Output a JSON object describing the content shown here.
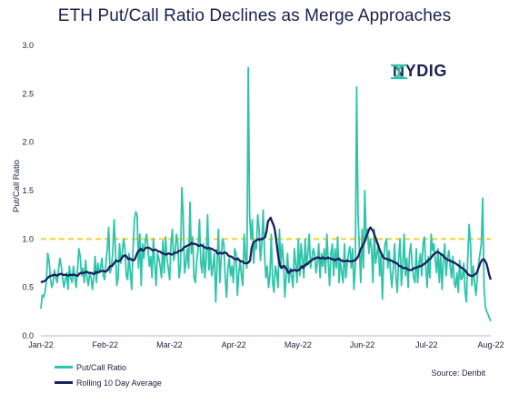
{
  "title": "ETH Put/Call Ratio Declines as Merge Approaches",
  "logo_text": "NYDIG",
  "source": "Source: Deribit",
  "colors": {
    "ratio": "#2ec4aa",
    "average": "#1b1f5c",
    "reference": "#f5d33a",
    "text": "#1a1f3a"
  },
  "chart_data": {
    "type": "line",
    "title": "ETH Put/Call Ratio Declines as Merge Approaches",
    "xlabel": "",
    "ylabel": "Put/Call Ratio",
    "ylim": [
      0,
      3.0
    ],
    "yticks": [
      "0.0",
      "0.5",
      "1.0",
      "1.5",
      "2.0",
      "2.5",
      "3.0"
    ],
    "xticks": [
      "Jan-22",
      "Feb-22",
      "Mar-22",
      "Apr-22",
      "May-22",
      "Jun-22",
      "Jul-22",
      "Aug-22"
    ],
    "x_range": [
      "2022-01-01",
      "2022-08-01"
    ],
    "reference_line": {
      "y": 1.0,
      "style": "dashed"
    },
    "grid": false,
    "legend": "bottom-left",
    "series": [
      {
        "name": "Put/Call Ratio",
        "values": [
          0.28,
          0.42,
          0.4,
          0.45,
          0.55,
          0.85,
          0.78,
          0.6,
          0.5,
          0.55,
          0.68,
          0.6,
          0.55,
          0.68,
          0.8,
          0.72,
          0.6,
          0.5,
          0.58,
          0.65,
          0.48,
          0.72,
          0.6,
          0.55,
          0.72,
          0.6,
          0.5,
          0.68,
          0.9,
          0.82,
          0.62,
          0.7,
          0.55,
          0.78,
          0.6,
          0.52,
          0.65,
          0.6,
          0.48,
          0.6,
          0.82,
          0.55,
          0.75,
          0.65,
          0.7,
          0.8,
          0.62,
          0.58,
          0.75,
          0.9,
          1.12,
          0.65,
          0.7,
          0.85,
          1.2,
          0.9,
          0.52,
          0.6,
          0.95,
          0.75,
          0.85,
          1.0,
          0.9,
          0.62,
          0.58,
          0.85,
          0.65,
          0.48,
          0.9,
          1.2,
          1.28,
          1.25,
          0.7,
          1.05,
          0.52,
          0.95,
          0.8,
          0.98,
          1.05,
          0.9,
          0.72,
          0.82,
          0.6,
          1.0,
          0.75,
          0.52,
          0.85,
          0.8,
          0.72,
          0.6,
          0.98,
          0.65,
          1.02,
          0.8,
          0.7,
          0.58,
          0.95,
          1.1,
          0.78,
          0.85,
          1.05,
          0.95,
          0.6,
          0.72,
          1.53,
          1.25,
          0.65,
          0.75,
          0.9,
          0.7,
          1.38,
          0.85,
          1.02,
          0.6,
          0.55,
          0.78,
          0.9,
          1.2,
          0.75,
          0.65,
          0.95,
          0.6,
          0.8,
          1.25,
          0.68,
          0.9,
          0.62,
          0.72,
          0.85,
          0.35,
          0.75,
          1.1,
          0.55,
          0.8,
          1.0,
          0.95,
          0.6,
          0.4,
          0.7,
          0.8,
          0.62,
          0.72,
          0.55,
          0.9,
          0.85,
          0.42,
          0.65,
          0.78,
          0.62,
          0.52,
          1.05,
          0.8,
          0.7,
          2.77,
          1.25,
          1.0,
          1.2,
          0.75,
          0.95,
          0.9,
          1.25,
          1.1,
          0.78,
          0.95,
          1.3,
          0.85,
          0.6,
          0.72,
          0.5,
          0.62,
          1.05,
          0.55,
          0.45,
          0.72,
          0.65,
          0.5,
          1.1,
          0.7,
          0.95,
          0.78,
          0.4,
          0.62,
          0.85,
          0.55,
          0.7,
          0.62,
          0.5,
          0.9,
          0.75,
          0.55,
          1.0,
          0.62,
          0.95,
          0.8,
          0.6,
          1.0,
          0.72,
          0.85,
          1.05,
          0.7,
          0.8,
          0.9,
          0.85,
          0.65,
          0.75,
          0.95,
          0.6,
          0.85,
          0.72,
          0.9,
          0.65,
          1.05,
          0.78,
          0.52,
          0.85,
          0.95,
          0.62,
          0.9,
          0.7,
          1.02,
          0.55,
          0.78,
          0.65,
          0.55,
          0.95,
          0.6,
          0.75,
          0.85,
          0.92,
          0.7,
          0.9,
          0.48,
          0.72,
          2.57,
          1.25,
          0.9,
          0.55,
          1.1,
          0.7,
          1.5,
          1.0,
          1.1,
          0.85,
          1.0,
          0.9,
          0.55,
          1.1,
          0.75,
          0.85,
          0.95,
          0.62,
          0.85,
          0.38,
          0.8,
          0.95,
          1.0,
          0.7,
          0.88,
          0.65,
          0.5,
          0.7,
          0.95,
          0.6,
          0.45,
          0.8,
          1.0,
          0.52,
          0.72,
          1.05,
          0.62,
          0.8,
          0.5,
          0.85,
          0.95,
          0.72,
          0.6,
          0.55,
          0.9,
          0.55,
          0.75,
          0.85,
          0.62,
          0.95,
          1.02,
          0.72,
          0.5,
          0.82,
          0.6,
          1.05,
          0.88,
          0.95,
          0.78,
          0.65,
          0.9,
          0.55,
          0.85,
          0.48,
          0.78,
          0.95,
          0.62,
          0.8,
          0.88,
          0.72,
          0.6,
          0.82,
          0.55,
          0.5,
          0.65,
          0.45,
          0.78,
          0.58,
          0.6,
          0.75,
          0.45,
          0.35,
          0.82,
          1.15,
          0.95,
          0.52,
          0.72,
          0.55,
          0.42,
          0.6,
          0.75,
          0.85,
          0.95,
          1.42,
          0.5,
          0.3,
          0.25,
          0.22,
          0.18,
          0.15
        ]
      },
      {
        "name": "Rolling 10 Day Average",
        "values": [
          0.55,
          0.56,
          0.56,
          0.57,
          0.58,
          0.6,
          0.61,
          0.62,
          0.62,
          0.63,
          0.63,
          0.63,
          0.62,
          0.63,
          0.64,
          0.64,
          0.63,
          0.63,
          0.63,
          0.63,
          0.62,
          0.63,
          0.63,
          0.63,
          0.63,
          0.63,
          0.62,
          0.62,
          0.64,
          0.65,
          0.65,
          0.65,
          0.65,
          0.66,
          0.66,
          0.65,
          0.65,
          0.65,
          0.64,
          0.64,
          0.66,
          0.65,
          0.66,
          0.66,
          0.67,
          0.67,
          0.67,
          0.66,
          0.67,
          0.68,
          0.71,
          0.72,
          0.72,
          0.74,
          0.76,
          0.78,
          0.77,
          0.77,
          0.78,
          0.8,
          0.82,
          0.83,
          0.83,
          0.81,
          0.79,
          0.8,
          0.79,
          0.78,
          0.78,
          0.8,
          0.84,
          0.87,
          0.88,
          0.9,
          0.88,
          0.88,
          0.9,
          0.91,
          0.91,
          0.91,
          0.9,
          0.89,
          0.88,
          0.89,
          0.89,
          0.88,
          0.87,
          0.87,
          0.86,
          0.85,
          0.85,
          0.84,
          0.84,
          0.85,
          0.85,
          0.84,
          0.84,
          0.85,
          0.86,
          0.86,
          0.86,
          0.88,
          0.88,
          0.88,
          0.9,
          0.92,
          0.92,
          0.93,
          0.94,
          0.94,
          0.96,
          0.95,
          0.95,
          0.95,
          0.94,
          0.93,
          0.93,
          0.94,
          0.93,
          0.92,
          0.91,
          0.91,
          0.9,
          0.91,
          0.9,
          0.9,
          0.89,
          0.88,
          0.88,
          0.85,
          0.85,
          0.86,
          0.85,
          0.85,
          0.86,
          0.86,
          0.85,
          0.83,
          0.82,
          0.82,
          0.81,
          0.8,
          0.79,
          0.79,
          0.8,
          0.78,
          0.77,
          0.77,
          0.76,
          0.75,
          0.75,
          0.75,
          0.76,
          0.78,
          0.9,
          0.95,
          0.97,
          0.98,
          0.99,
          1.0,
          0.99,
          1.0,
          1.0,
          1.01,
          1.02,
          1.08,
          1.18,
          1.2,
          1.22,
          1.18,
          1.15,
          1.1,
          1.0,
          0.88,
          0.78,
          0.72,
          0.7,
          0.72,
          0.72,
          0.7,
          0.68,
          0.65,
          0.66,
          0.68,
          0.67,
          0.68,
          0.68,
          0.67,
          0.68,
          0.68,
          0.7,
          0.72,
          0.7,
          0.73,
          0.74,
          0.74,
          0.76,
          0.77,
          0.78,
          0.79,
          0.8,
          0.8,
          0.81,
          0.81,
          0.8,
          0.8,
          0.81,
          0.8,
          0.8,
          0.8,
          0.81,
          0.8,
          0.8,
          0.79,
          0.79,
          0.78,
          0.79,
          0.79,
          0.8,
          0.78,
          0.78,
          0.77,
          0.77,
          0.77,
          0.78,
          0.77,
          0.77,
          0.77,
          0.77,
          0.78,
          0.78,
          0.8,
          0.82,
          0.86,
          0.9,
          0.92,
          0.95,
          0.98,
          1.03,
          1.06,
          1.1,
          1.12,
          1.1,
          1.08,
          1.04,
          1.0,
          0.96,
          0.92,
          0.88,
          0.85,
          0.82,
          0.8,
          0.8,
          0.79,
          0.79,
          0.78,
          0.78,
          0.77,
          0.76,
          0.76,
          0.75,
          0.74,
          0.72,
          0.72,
          0.71,
          0.7,
          0.7,
          0.7,
          0.69,
          0.68,
          0.68,
          0.68,
          0.69,
          0.7,
          0.7,
          0.71,
          0.71,
          0.72,
          0.72,
          0.73,
          0.74,
          0.75,
          0.76,
          0.78,
          0.79,
          0.8,
          0.82,
          0.84,
          0.85,
          0.86,
          0.87,
          0.86,
          0.85,
          0.84,
          0.83,
          0.81,
          0.8,
          0.79,
          0.78,
          0.78,
          0.77,
          0.76,
          0.76,
          0.75,
          0.74,
          0.73,
          0.72,
          0.71,
          0.7,
          0.69,
          0.68,
          0.66,
          0.64,
          0.63,
          0.62,
          0.62,
          0.62,
          0.63,
          0.64,
          0.66,
          0.7,
          0.74,
          0.77,
          0.79,
          0.79,
          0.77,
          0.74,
          0.68,
          0.62,
          0.58
        ]
      }
    ]
  }
}
